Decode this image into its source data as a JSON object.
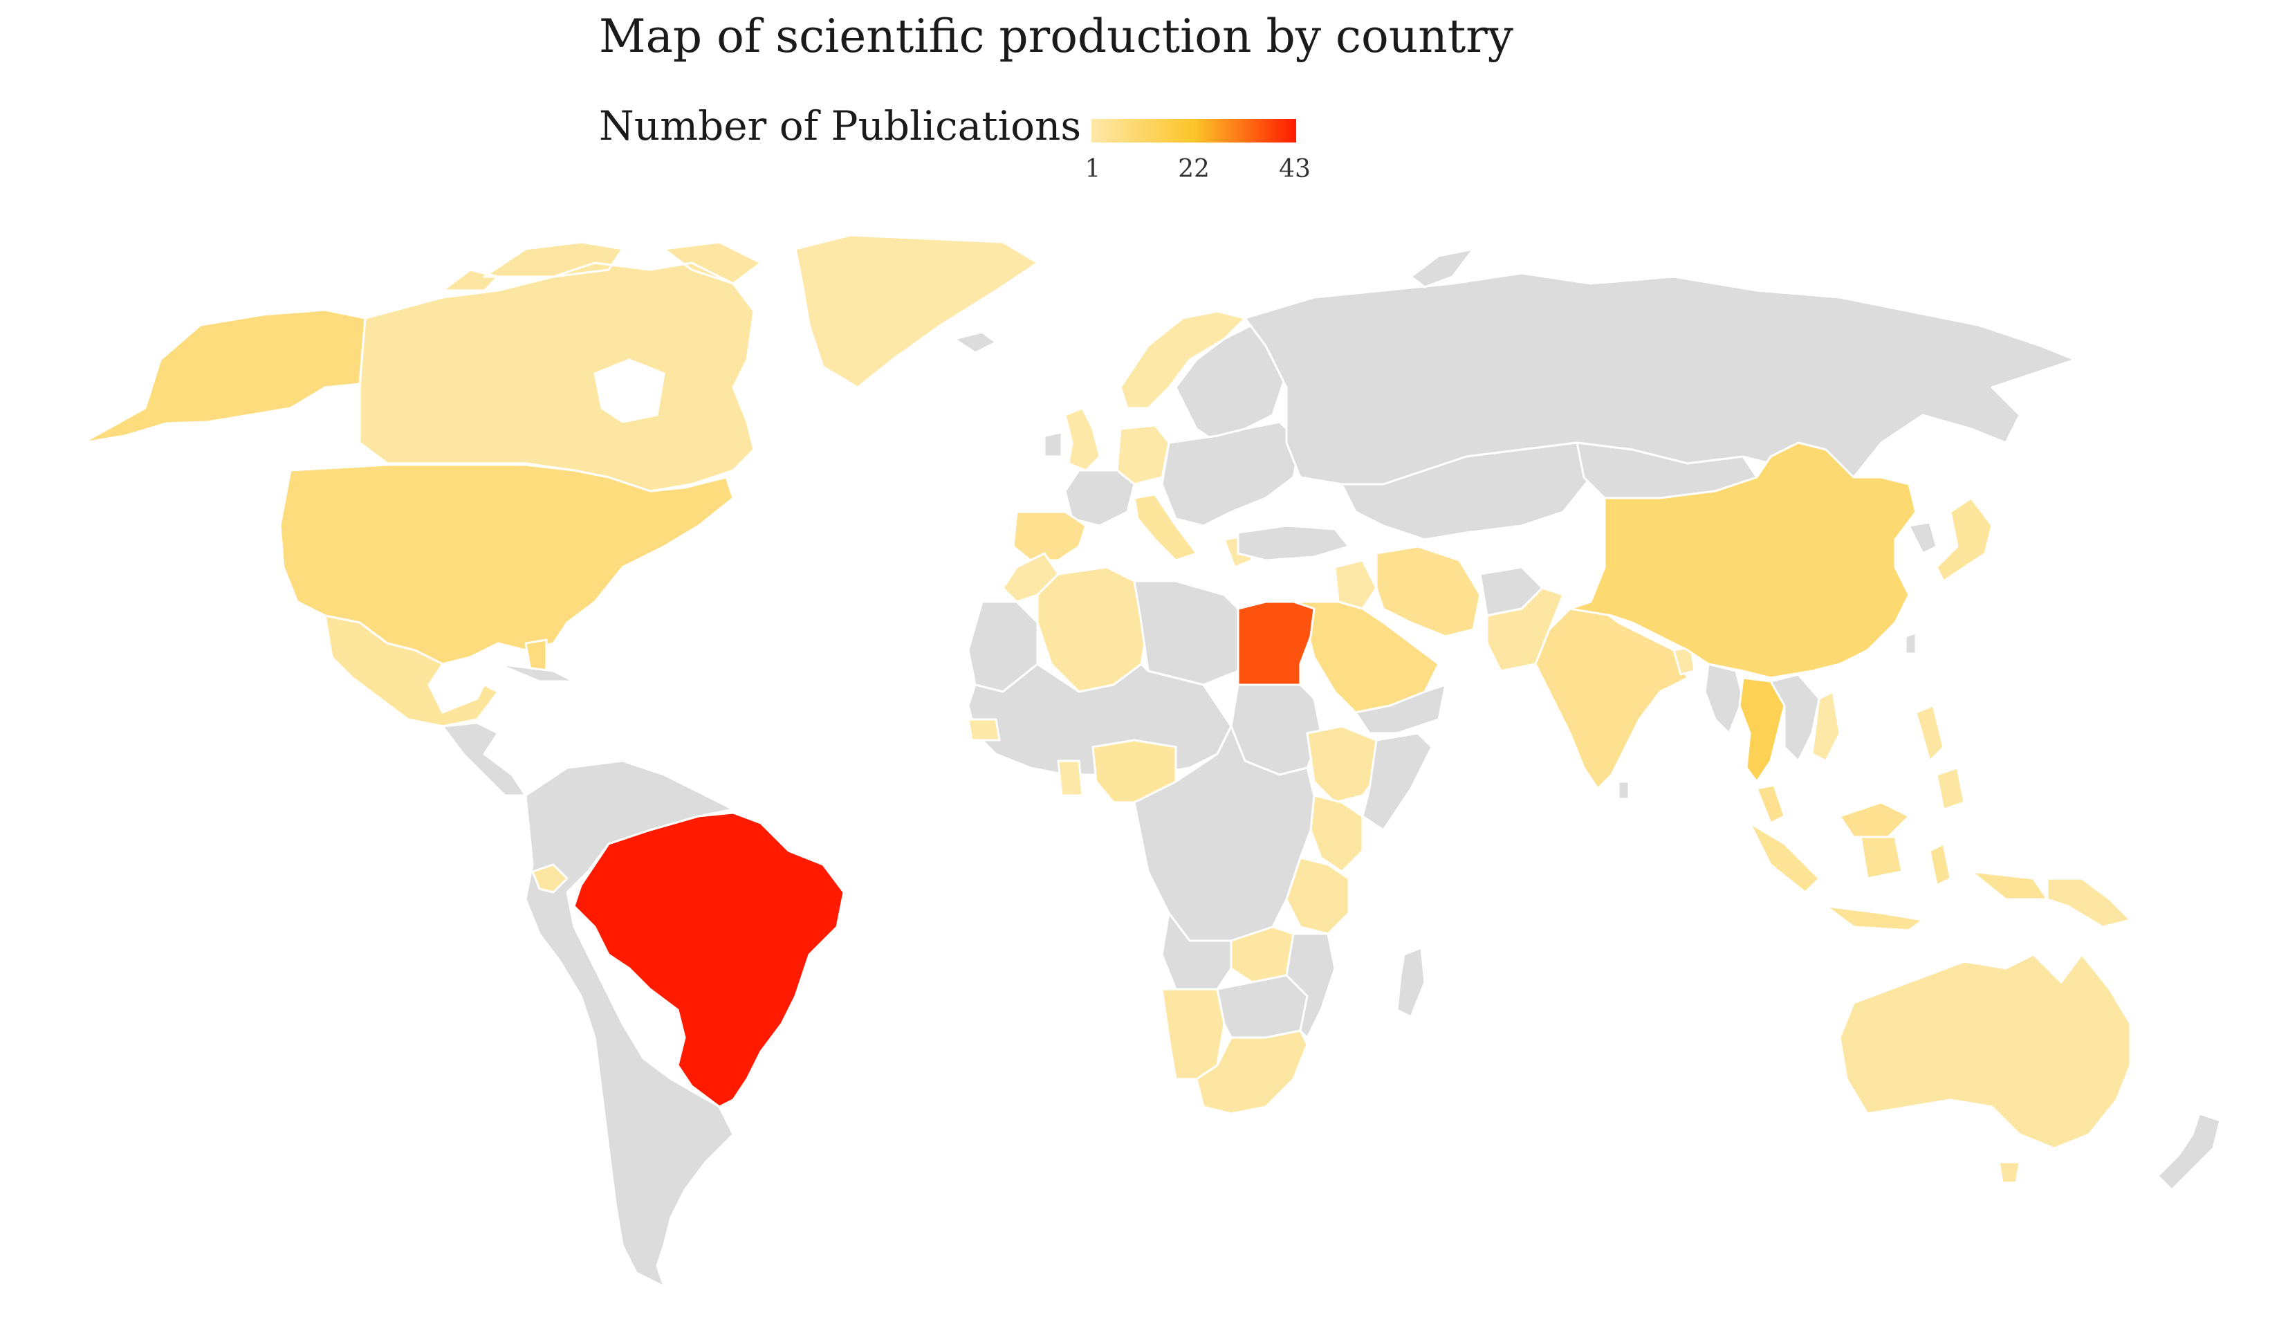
{
  "title": "Map of scientific production by country",
  "legend": {
    "title": "Number of Publications",
    "min_label": "1",
    "mid_label": "22",
    "max_label": "43",
    "min": 1,
    "max": 43,
    "colors": [
      "#fde8a8",
      "#fcc52a",
      "#ff1a00"
    ]
  },
  "colors": {
    "no_data": "#dcdcdc",
    "background": "#ffffff"
  },
  "map_data": {
    "type": "choropleth",
    "metric": "Number of Publications",
    "countries": [
      {
        "name": "Brazil",
        "value": 43
      },
      {
        "name": "Egypt",
        "value": 36
      },
      {
        "name": "Thailand",
        "value": 15
      },
      {
        "name": "China",
        "value": 10
      },
      {
        "name": "United States",
        "value": 8
      },
      {
        "name": "Saudi Arabia",
        "value": 7
      },
      {
        "name": "India",
        "value": 5
      },
      {
        "name": "Spain",
        "value": 5
      },
      {
        "name": "Iran",
        "value": 5
      },
      {
        "name": "Malaysia",
        "value": 5
      },
      {
        "name": "Indonesia",
        "value": 4
      },
      {
        "name": "Mexico",
        "value": 3
      },
      {
        "name": "Japan",
        "value": 3
      },
      {
        "name": "Italy",
        "value": 3
      },
      {
        "name": "Nigeria",
        "value": 3
      },
      {
        "name": "Canada",
        "value": 2
      },
      {
        "name": "Australia",
        "value": 2
      },
      {
        "name": "Algeria",
        "value": 2
      },
      {
        "name": "South Africa",
        "value": 2
      },
      {
        "name": "Kenya",
        "value": 2
      },
      {
        "name": "Tanzania",
        "value": 2
      },
      {
        "name": "Ethiopia",
        "value": 2
      },
      {
        "name": "Pakistan",
        "value": 2
      },
      {
        "name": "Ecuador",
        "value": 2
      },
      {
        "name": "Namibia",
        "value": 2
      },
      {
        "name": "Zambia",
        "value": 2
      },
      {
        "name": "Philippines",
        "value": 2
      },
      {
        "name": "Papua New Guinea",
        "value": 2
      },
      {
        "name": "United Kingdom",
        "value": 1
      },
      {
        "name": "Germany",
        "value": 1
      },
      {
        "name": "Norway",
        "value": 1
      },
      {
        "name": "Greece",
        "value": 1
      },
      {
        "name": "Iraq",
        "value": 1
      },
      {
        "name": "Greenland",
        "value": 1
      },
      {
        "name": "Ghana",
        "value": 1
      },
      {
        "name": "Senegal",
        "value": 1
      },
      {
        "name": "Bangladesh",
        "value": 1
      },
      {
        "name": "Vietnam",
        "value": 1
      },
      {
        "name": "Morocco",
        "value": 1
      }
    ]
  }
}
